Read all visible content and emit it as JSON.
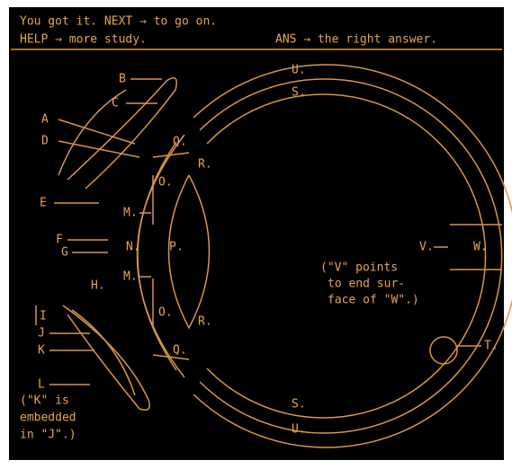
{
  "header": {
    "status": "You got it.  NEXT → to go on.",
    "help": "HELP → more study.",
    "answer": "ANS → the right answer."
  },
  "labels": [
    "A",
    "B",
    "C",
    "D",
    "E",
    "F",
    "G",
    "H.",
    "I",
    "J",
    "K",
    "L",
    "M.",
    "M.",
    "N.",
    "O.",
    "O.",
    "P.",
    "Q.",
    "Q.",
    "R.",
    "R.",
    "S.",
    "S.",
    "U.",
    "U.",
    "T.",
    "V.",
    "W."
  ],
  "notes": {
    "v_note": [
      "(\"V\" points",
      "to end sur-",
      "face of \"W\".)"
    ],
    "k_note": [
      "(\"K\" is",
      "embedded",
      "in \"J\".)"
    ]
  }
}
